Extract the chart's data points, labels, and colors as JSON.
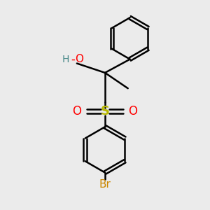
{
  "bg_color": "#ebebeb",
  "bond_color": "#000000",
  "bond_lw": 1.8,
  "S_color": "#b8b800",
  "O_color": "#ff0000",
  "Br_color": "#cc8800",
  "H_color": "#4a8a8a",
  "figsize": [
    3.0,
    3.0
  ],
  "dpi": 100,
  "xlim": [
    0,
    10
  ],
  "ylim": [
    0,
    10
  ]
}
